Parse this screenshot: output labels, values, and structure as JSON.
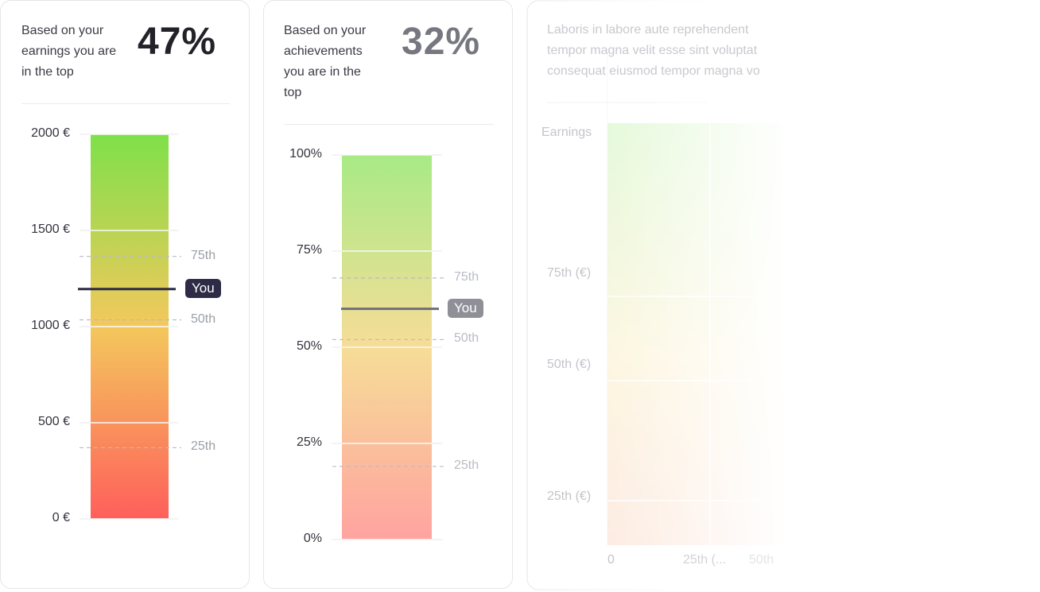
{
  "cards": [
    {
      "description_lines": [
        "Based on your",
        "earnings you are",
        "in the top"
      ],
      "percent": "47%",
      "percent_color": "#222228",
      "opacity": 1
    },
    {
      "description_lines": [
        "Based on your",
        "achievements",
        "you are in the",
        "top"
      ],
      "percent": "32%",
      "percent_color": "#777780",
      "opacity": 0.85
    }
  ],
  "chart_data": [
    {
      "type": "bar",
      "ylim": [
        0,
        2000
      ],
      "y_ticks": [
        0,
        500,
        1000,
        1500,
        2000
      ],
      "y_tick_labels": [
        "0 €",
        "500 €",
        "1000 €",
        "1500 €",
        "2000 €"
      ],
      "percentiles": [
        {
          "label": "75th",
          "value": 1365
        },
        {
          "label": "50th",
          "value": 1035
        },
        {
          "label": "25th",
          "value": 370
        }
      ],
      "you": {
        "label": "You",
        "value": 1195
      },
      "colors": {
        "top": "#7fe04a",
        "mid": "#f3c85c",
        "bottom": "#ff5f5b",
        "you": "#2d2b45"
      }
    },
    {
      "type": "bar",
      "ylim": [
        0,
        100
      ],
      "y_ticks": [
        0,
        25,
        50,
        75,
        100
      ],
      "y_tick_labels": [
        "0%",
        "25%",
        "50%",
        "75%",
        "100%"
      ],
      "percentiles": [
        {
          "label": "75th",
          "value": 68
        },
        {
          "label": "50th",
          "value": 52
        },
        {
          "label": "25th",
          "value": 19
        }
      ],
      "you": {
        "label": "You",
        "value": 60
      },
      "colors": {
        "top": "#a8ea86",
        "mid": "#f6dd97",
        "bottom": "#ffa3a0",
        "you": "#6e6e78"
      }
    },
    {
      "type": "heatmap",
      "description_lines": [
        "Laboris in labore aute reprehendent",
        "tempor magna velit esse sint voluptat",
        "consequat eiusmod tempor magna vo"
      ],
      "ylabel": "Earnings",
      "y_tick_labels": [
        "75th (€)",
        "50th (€)",
        "25th (€)"
      ],
      "x_tick_labels": [
        "0",
        "25th (...",
        "50th"
      ]
    }
  ]
}
